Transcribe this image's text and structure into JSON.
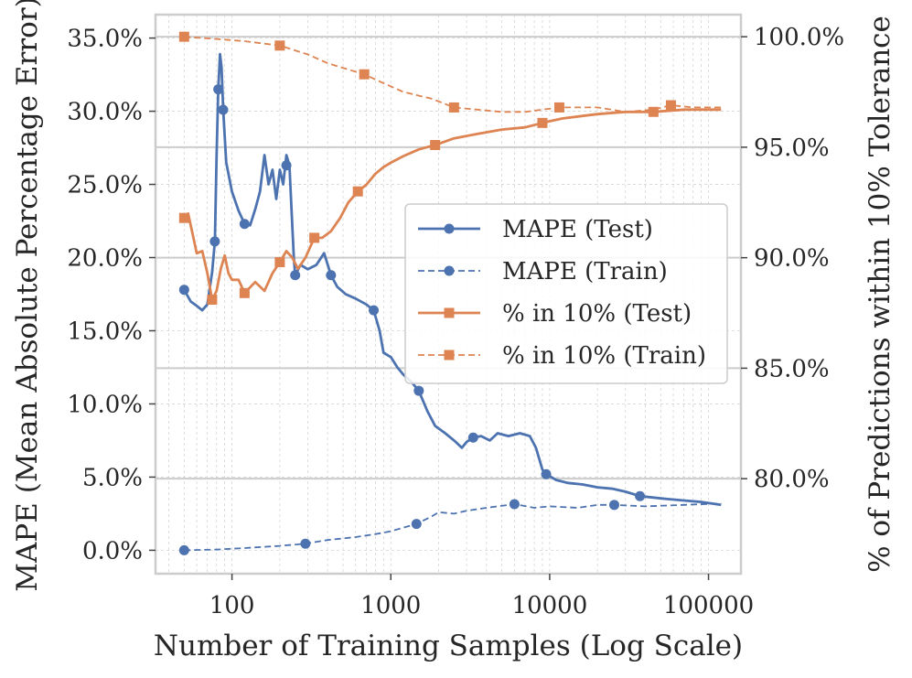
{
  "chart_data": {
    "type": "line",
    "title": "",
    "xlabel": "Number of Training Samples (Log Scale)",
    "ylabel": "MAPE (Mean Absolute Percentage Error)",
    "y2label": "% of Predictions within 10% Tolerance",
    "xscale": "log",
    "xlim": [
      33,
      160000
    ],
    "ylim": [
      -1.6,
      36.6
    ],
    "y2lim": [
      75.7,
      101.0
    ],
    "x_ticks": [
      100,
      1000,
      10000,
      100000
    ],
    "x_tick_labels": [
      "100",
      "1000",
      "10000",
      "100000"
    ],
    "y_ticks": [
      0,
      5,
      10,
      15,
      20,
      25,
      30,
      35
    ],
    "y_tick_labels": [
      "0.0%",
      "5.0%",
      "10.0%",
      "15.0%",
      "20.0%",
      "25.0%",
      "30.0%",
      "35.0%"
    ],
    "y2_ticks": [
      80,
      85,
      90,
      95,
      100
    ],
    "y2_tick_labels": [
      "80.0%",
      "85.0%",
      "90.0%",
      "95.0%",
      "100.0%"
    ],
    "grid": true,
    "legend_position": "center-right",
    "series": [
      {
        "name": "MAPE (Test)",
        "axis": "left",
        "color": "#4c72b0",
        "linestyle": "solid",
        "marker": "circle",
        "points": [
          [
            50,
            17.8
          ],
          [
            55,
            17.0
          ],
          [
            60,
            16.7
          ],
          [
            65,
            16.4
          ],
          [
            70,
            16.8
          ],
          [
            75,
            19.0
          ],
          [
            78,
            21.1
          ],
          [
            80,
            27.0
          ],
          [
            82,
            31.5
          ],
          [
            84,
            33.9
          ],
          [
            86,
            33.0
          ],
          [
            88,
            30.1
          ],
          [
            92,
            26.5
          ],
          [
            100,
            24.5
          ],
          [
            110,
            23.2
          ],
          [
            120,
            22.3
          ],
          [
            130,
            22.2
          ],
          [
            140,
            23.3
          ],
          [
            150,
            24.5
          ],
          [
            160,
            27.0
          ],
          [
            170,
            25.0
          ],
          [
            180,
            26.0
          ],
          [
            190,
            24.0
          ],
          [
            200,
            26.0
          ],
          [
            210,
            25.0
          ],
          [
            220,
            27.0
          ],
          [
            230,
            26.3
          ],
          [
            245,
            20.0
          ],
          [
            250,
            18.8
          ],
          [
            270,
            19.5
          ],
          [
            300,
            19.2
          ],
          [
            340,
            19.5
          ],
          [
            380,
            20.3
          ],
          [
            420,
            18.8
          ],
          [
            460,
            18.0
          ],
          [
            520,
            17.5
          ],
          [
            600,
            17.2
          ],
          [
            700,
            16.8
          ],
          [
            780,
            16.4
          ],
          [
            850,
            15.0
          ],
          [
            900,
            13.5
          ],
          [
            1000,
            13.2
          ],
          [
            1100,
            12.5
          ],
          [
            1200,
            12.0
          ],
          [
            1350,
            11.5
          ],
          [
            1500,
            10.9
          ],
          [
            1700,
            9.5
          ],
          [
            1900,
            8.5
          ],
          [
            2200,
            8.0
          ],
          [
            2500,
            7.5
          ],
          [
            2800,
            7.0
          ],
          [
            3000,
            7.4
          ],
          [
            3300,
            7.7
          ],
          [
            3700,
            7.8
          ],
          [
            4200,
            7.5
          ],
          [
            4700,
            8.0
          ],
          [
            5500,
            7.8
          ],
          [
            6500,
            8.0
          ],
          [
            7500,
            7.8
          ],
          [
            8200,
            7.0
          ],
          [
            9000,
            5.5
          ],
          [
            9500,
            5.2
          ],
          [
            11000,
            4.8
          ],
          [
            13000,
            4.6
          ],
          [
            16000,
            4.5
          ],
          [
            20000,
            4.3
          ],
          [
            25000,
            4.2
          ],
          [
            30000,
            4.0
          ],
          [
            37000,
            3.7
          ],
          [
            45000,
            3.6
          ],
          [
            55000,
            3.5
          ],
          [
            70000,
            3.4
          ],
          [
            90000,
            3.3
          ],
          [
            120000,
            3.1
          ]
        ],
        "marker_points": [
          [
            50,
            17.8
          ],
          [
            78,
            21.1
          ],
          [
            82,
            31.5
          ],
          [
            88,
            30.1
          ],
          [
            120,
            22.3
          ],
          [
            220,
            26.3
          ],
          [
            250,
            18.8
          ],
          [
            420,
            18.8
          ],
          [
            780,
            16.4
          ],
          [
            1500,
            10.9
          ],
          [
            3300,
            7.7
          ],
          [
            9500,
            5.2
          ],
          [
            37000,
            3.7
          ]
        ]
      },
      {
        "name": "MAPE (Train)",
        "axis": "left",
        "color": "#4c72b0",
        "linestyle": "dashed",
        "marker": "circle",
        "points": [
          [
            50,
            0.0
          ],
          [
            80,
            0.05
          ],
          [
            120,
            0.15
          ],
          [
            200,
            0.3
          ],
          [
            290,
            0.45
          ],
          [
            400,
            0.7
          ],
          [
            600,
            0.9
          ],
          [
            800,
            1.1
          ],
          [
            1000,
            1.3
          ],
          [
            1450,
            1.8
          ],
          [
            1800,
            2.3
          ],
          [
            2000,
            2.6
          ],
          [
            2500,
            2.5
          ],
          [
            3000,
            2.7
          ],
          [
            4000,
            2.9
          ],
          [
            6000,
            3.15
          ],
          [
            8000,
            2.9
          ],
          [
            10000,
            3.0
          ],
          [
            15000,
            2.9
          ],
          [
            20000,
            3.1
          ],
          [
            25500,
            3.1
          ],
          [
            40000,
            3.0
          ],
          [
            70000,
            3.1
          ],
          [
            120000,
            3.2
          ]
        ],
        "marker_points": [
          [
            50,
            0.0
          ],
          [
            290,
            0.45
          ],
          [
            1450,
            1.8
          ],
          [
            6000,
            3.15
          ],
          [
            25500,
            3.1
          ]
        ]
      },
      {
        "name": "% in 10% (Test)",
        "axis": "right",
        "color": "#dd8452",
        "linestyle": "solid",
        "marker": "square",
        "points": [
          [
            50,
            91.8
          ],
          [
            53,
            92.0
          ],
          [
            56,
            91.2
          ],
          [
            60,
            90.2
          ],
          [
            65,
            90.3
          ],
          [
            70,
            89.3
          ],
          [
            75,
            88.1
          ],
          [
            80,
            88.5
          ],
          [
            85,
            89.5
          ],
          [
            90,
            90.1
          ],
          [
            95,
            89.3
          ],
          [
            100,
            89.0
          ],
          [
            110,
            89.0
          ],
          [
            120,
            88.4
          ],
          [
            140,
            88.9
          ],
          [
            160,
            88.5
          ],
          [
            180,
            89.3
          ],
          [
            200,
            89.8
          ],
          [
            220,
            90.3
          ],
          [
            240,
            90.0
          ],
          [
            260,
            89.5
          ],
          [
            290,
            90.0
          ],
          [
            330,
            90.9
          ],
          [
            370,
            90.9
          ],
          [
            420,
            91.2
          ],
          [
            480,
            91.8
          ],
          [
            540,
            92.5
          ],
          [
            620,
            93.0
          ],
          [
            700,
            93.3
          ],
          [
            800,
            93.8
          ],
          [
            900,
            94.1
          ],
          [
            1000,
            94.3
          ],
          [
            1200,
            94.6
          ],
          [
            1500,
            94.9
          ],
          [
            1900,
            95.1
          ],
          [
            2500,
            95.4
          ],
          [
            3500,
            95.6
          ],
          [
            5000,
            95.8
          ],
          [
            7000,
            95.9
          ],
          [
            9000,
            96.1
          ],
          [
            12000,
            96.3
          ],
          [
            20000,
            96.5
          ],
          [
            30000,
            96.6
          ],
          [
            45000,
            96.6
          ],
          [
            70000,
            96.7
          ],
          [
            120000,
            96.7
          ]
        ],
        "marker_points": [
          [
            50,
            91.8
          ],
          [
            75,
            88.1
          ],
          [
            120,
            88.4
          ],
          [
            200,
            89.8
          ],
          [
            330,
            90.9
          ],
          [
            620,
            93.0
          ],
          [
            1900,
            95.1
          ],
          [
            9000,
            96.1
          ],
          [
            45000,
            96.6
          ]
        ]
      },
      {
        "name": "% in 10% (Train)",
        "axis": "right",
        "color": "#dd8452",
        "linestyle": "dashed",
        "marker": "square",
        "points": [
          [
            50,
            100.0
          ],
          [
            80,
            99.9
          ],
          [
            120,
            99.8
          ],
          [
            200,
            99.6
          ],
          [
            300,
            99.2
          ],
          [
            400,
            98.8
          ],
          [
            550,
            98.5
          ],
          [
            680,
            98.3
          ],
          [
            900,
            97.9
          ],
          [
            1200,
            97.5
          ],
          [
            1800,
            97.2
          ],
          [
            2500,
            96.8
          ],
          [
            3500,
            96.7
          ],
          [
            5000,
            96.6
          ],
          [
            7000,
            96.6
          ],
          [
            9000,
            96.7
          ],
          [
            11500,
            96.8
          ],
          [
            20000,
            96.8
          ],
          [
            30000,
            96.6
          ],
          [
            45000,
            96.7
          ],
          [
            58000,
            96.9
          ],
          [
            80000,
            96.8
          ],
          [
            120000,
            96.8
          ]
        ],
        "marker_points": [
          [
            50,
            100.0
          ],
          [
            200,
            99.6
          ],
          [
            680,
            98.3
          ],
          [
            2500,
            96.8
          ],
          [
            11500,
            96.8
          ],
          [
            58000,
            96.9
          ]
        ]
      }
    ]
  }
}
